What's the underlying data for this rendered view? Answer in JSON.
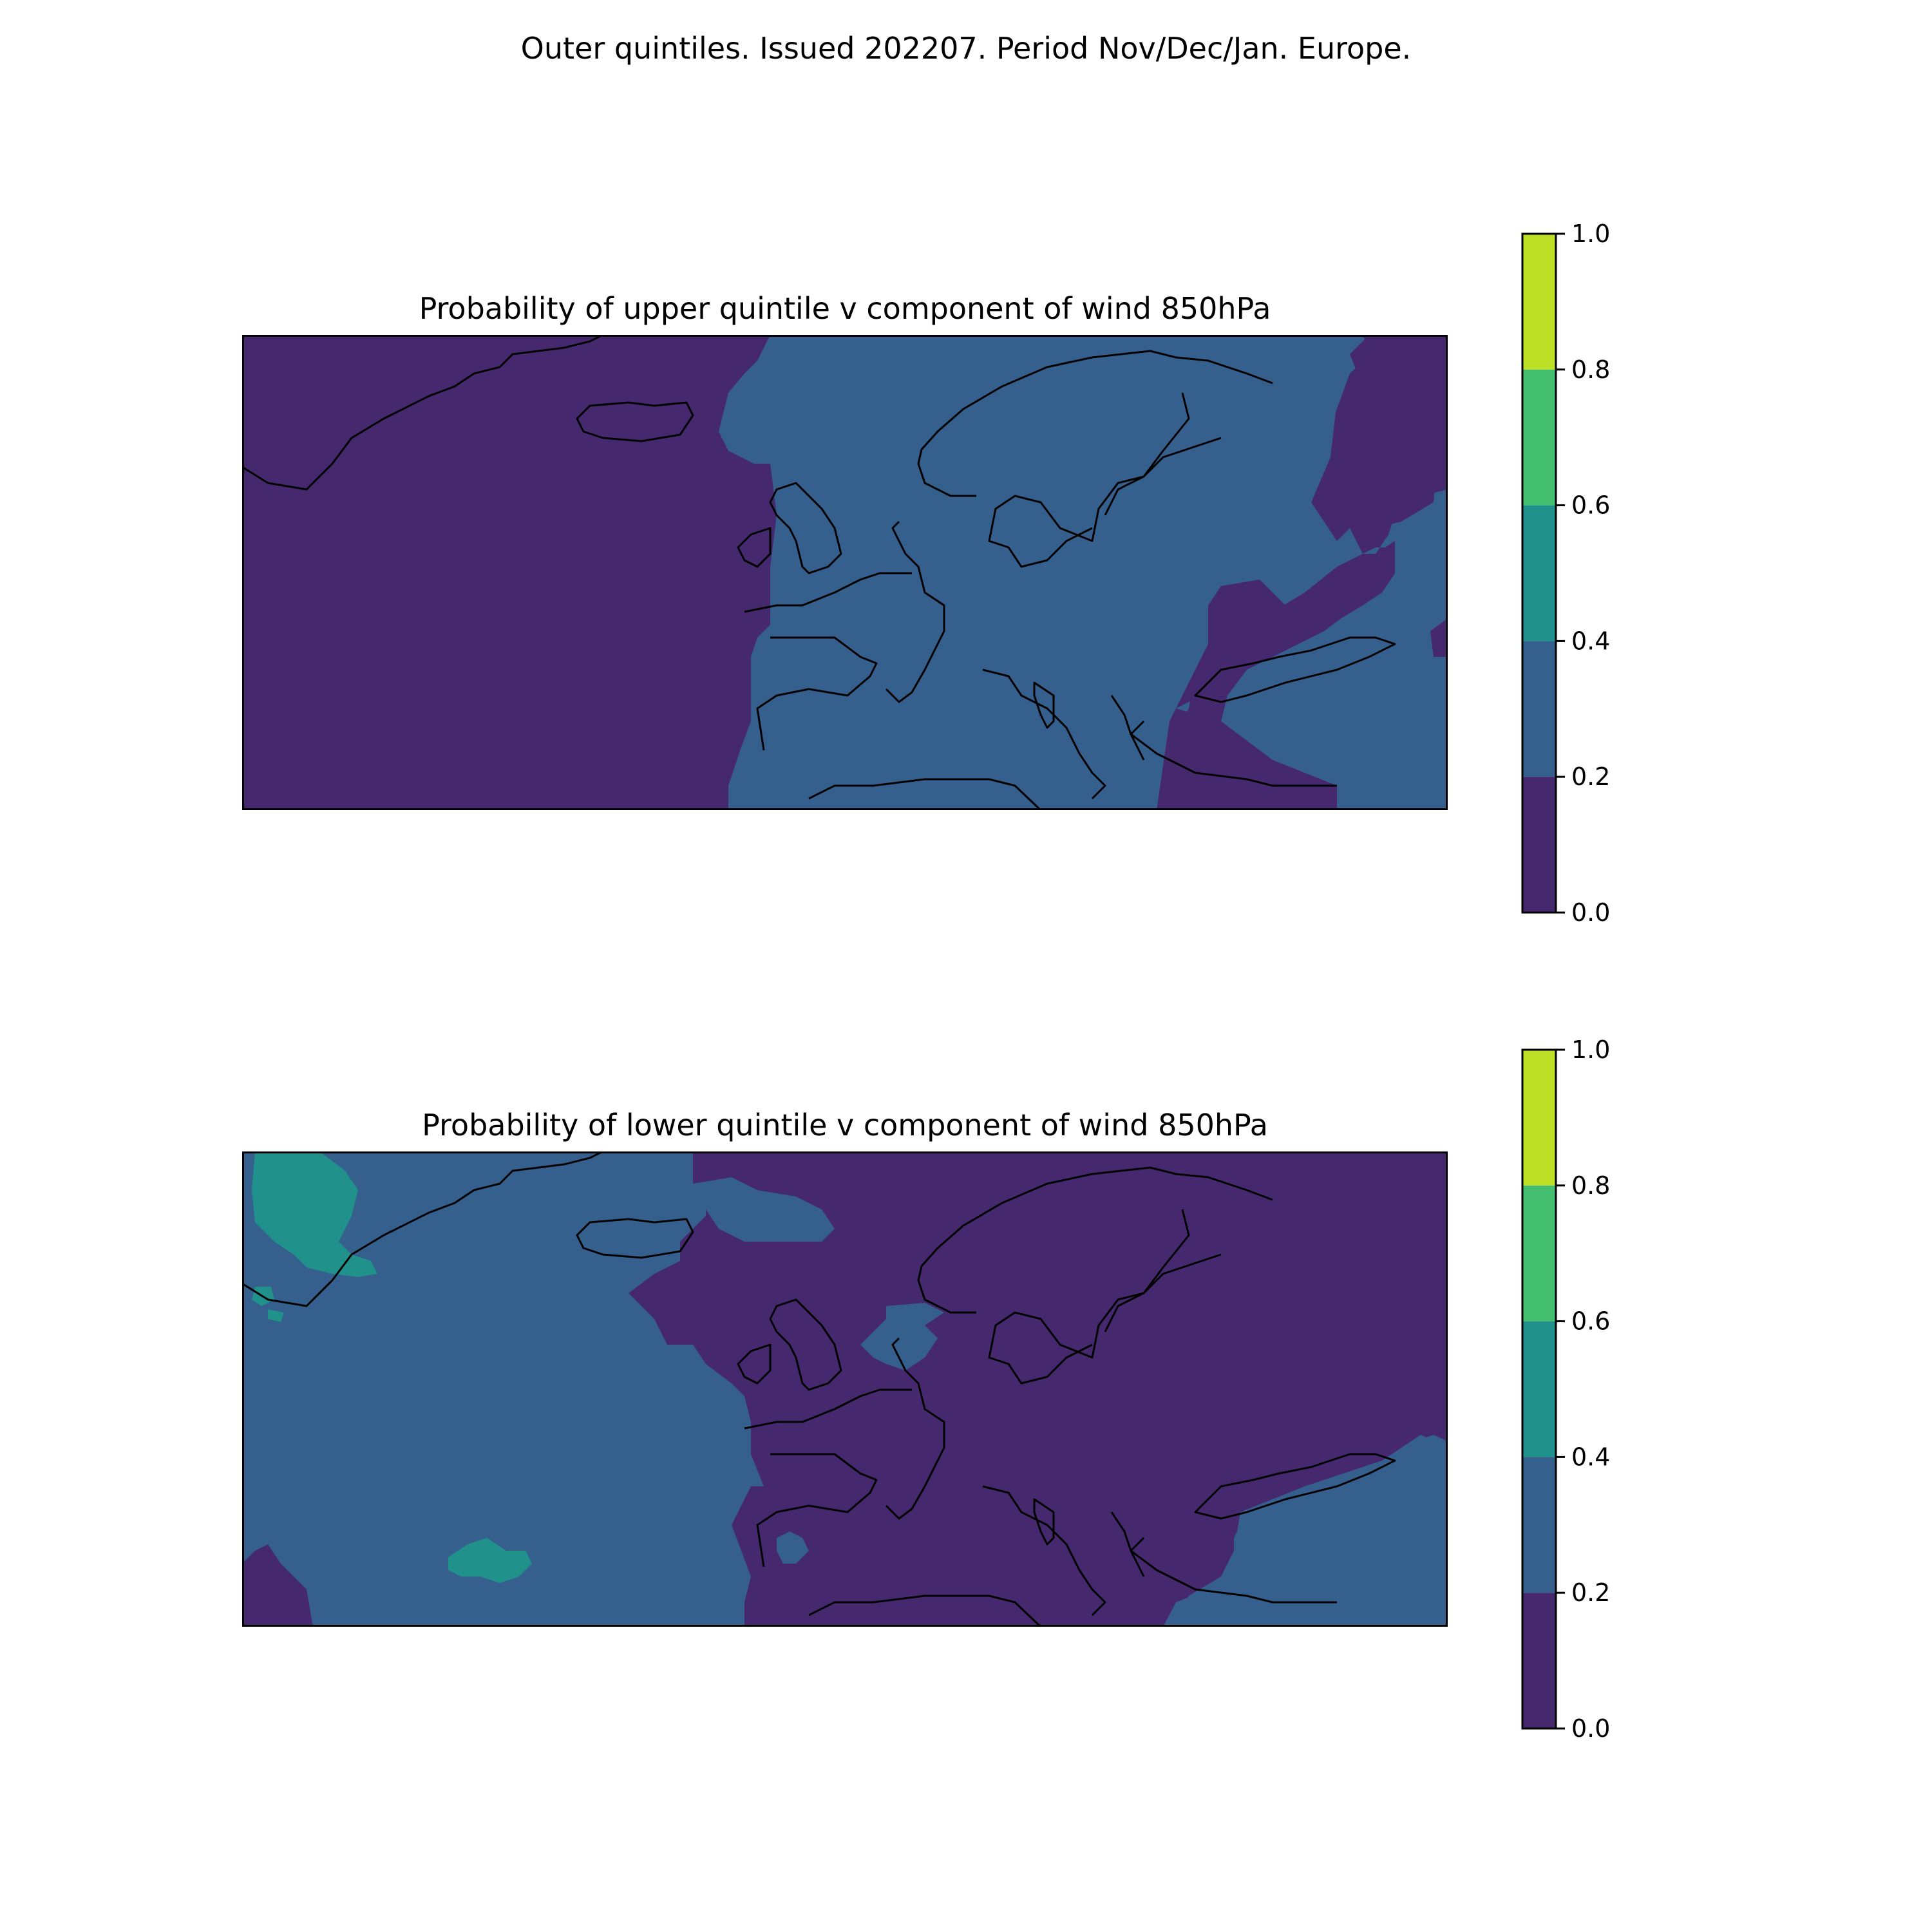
{
  "suptitle": "Outer quintiles. Issued 202207. Period Nov/Dec/Jan. Europe.",
  "colorbar": {
    "ticks": [
      "0.0",
      "0.2",
      "0.4",
      "0.6",
      "0.8",
      "1.0"
    ],
    "bins": [
      {
        "range": [
          0.0,
          0.2
        ],
        "color": "#46286f"
      },
      {
        "range": [
          0.2,
          0.4
        ],
        "color": "#355f8d"
      },
      {
        "range": [
          0.4,
          0.6
        ],
        "color": "#21918c"
      },
      {
        "range": [
          0.6,
          0.8
        ],
        "color": "#44bf70"
      },
      {
        "range": [
          0.8,
          1.0
        ],
        "color": "#bddf26"
      }
    ]
  },
  "chart_data": [
    {
      "type": "heatmap",
      "title": "Probability of upper quintile v component of wind 850hPa",
      "region": "Europe",
      "levels": [
        0.0,
        0.2,
        0.4,
        0.6,
        0.8,
        1.0
      ],
      "dominant_bins": {
        "western_atlantic": "0.0-0.2",
        "europe_mainland": "0.2-0.4",
        "black_sea_and_eastern_margin": "0.0-0.2"
      }
    },
    {
      "type": "heatmap",
      "title": "Probability of lower quintile v component of wind 850hPa",
      "region": "Europe",
      "levels": [
        0.0,
        0.2,
        0.4,
        0.6,
        0.8,
        1.0
      ],
      "dominant_bins": {
        "western_atlantic": "0.2-0.4",
        "southern_greenland_and_near_azores": "0.4-0.6",
        "europe_mainland": "0.0-0.2",
        "black_sea": "0.2-0.4"
      }
    }
  ]
}
